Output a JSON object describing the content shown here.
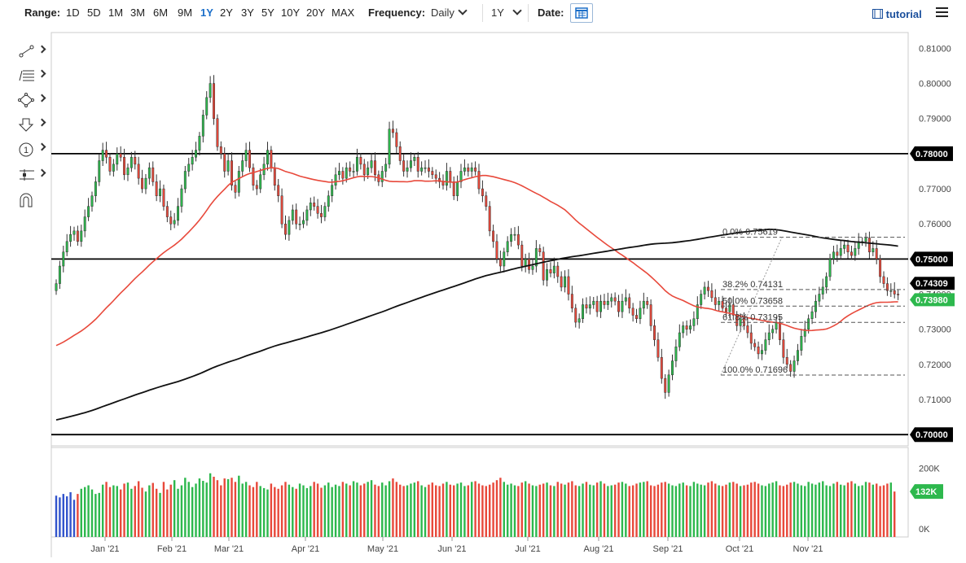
{
  "toolbar": {
    "range_label": "Range:",
    "ranges": [
      "1D",
      "5D",
      "1M",
      "3M",
      "6M",
      "9M",
      "1Y",
      "2Y",
      "3Y",
      "5Y",
      "10Y",
      "20Y",
      "MAX"
    ],
    "active_range": "1Y",
    "frequency_label": "Frequency:",
    "frequency_value": "Daily",
    "period_value": "1Y",
    "date_label": "Date:",
    "tutorial_label": "tutorial",
    "icons": {
      "calendar": "calendar-icon",
      "menu": "hamburger-menu-icon",
      "tutorial": "film-icon"
    }
  },
  "sidebar": {
    "tools": [
      "line-tool-icon",
      "fib-levels-icon",
      "shape-tool-icon",
      "arrow-down-icon",
      "circled-one-icon",
      "measure-tool-icon",
      "magnet-icon"
    ]
  },
  "colors": {
    "up": "#2db84d",
    "down": "#e8493b",
    "ma_short": "#e8493b",
    "ma_long": "#111111",
    "accent": "#1a6ec9"
  },
  "chart_data": {
    "type": "candlestick",
    "price_axis": {
      "ticks": [
        "0.81000",
        "0.80000",
        "0.79000",
        "0.78000",
        "0.77000",
        "0.76000",
        "0.75000",
        "0.74000",
        "0.73000",
        "0.72000",
        "0.71000",
        "0.70000"
      ],
      "ylim": [
        0.6968,
        0.8145
      ]
    },
    "volume_axis": {
      "ticks": [
        "200K",
        "0K"
      ],
      "ylim": [
        0,
        260000
      ]
    },
    "x_ticks": [
      "Jan '21",
      "Feb '21",
      "Mar '21",
      "Apr '21",
      "May '21",
      "Jun '21",
      "Jul '21",
      "Aug '21",
      "Sep '21",
      "Oct '21",
      "Nov '21"
    ],
    "horizontal_levels": [
      {
        "value": 0.78,
        "label": "0.78000"
      },
      {
        "value": 0.75,
        "label": "0.75000"
      },
      {
        "value": 0.7,
        "label": "0.70000"
      }
    ],
    "value_tags": [
      {
        "value": 0.74309,
        "label": "0.74309",
        "style": "black"
      },
      {
        "value": 0.7398,
        "label": "0.73980",
        "style": "green"
      }
    ],
    "volume_tag": {
      "value": 132000,
      "label": "132K"
    },
    "fib_levels": [
      {
        "label": "0.0% 0.75619",
        "value": 0.75619
      },
      {
        "label": "38.2% 0.74131",
        "value": 0.74131
      },
      {
        "label": "50.0% 0.73658",
        "value": 0.73658
      },
      {
        "label": "61.8% 0.73195",
        "value": 0.73195
      },
      {
        "label": "100.0% 0.71696",
        "value": 0.71696
      }
    ],
    "closes": [
      0.743,
      0.748,
      0.752,
      0.755,
      0.757,
      0.758,
      0.755,
      0.758,
      0.762,
      0.765,
      0.768,
      0.772,
      0.778,
      0.781,
      0.779,
      0.775,
      0.777,
      0.78,
      0.779,
      0.774,
      0.776,
      0.779,
      0.777,
      0.773,
      0.77,
      0.773,
      0.776,
      0.772,
      0.768,
      0.77,
      0.765,
      0.762,
      0.76,
      0.761,
      0.765,
      0.77,
      0.775,
      0.777,
      0.779,
      0.781,
      0.785,
      0.791,
      0.796,
      0.8,
      0.79,
      0.782,
      0.78,
      0.775,
      0.778,
      0.771,
      0.769,
      0.775,
      0.778,
      0.781,
      0.776,
      0.771,
      0.77,
      0.774,
      0.777,
      0.781,
      0.776,
      0.771,
      0.768,
      0.76,
      0.757,
      0.761,
      0.764,
      0.76,
      0.76,
      0.761,
      0.764,
      0.766,
      0.765,
      0.763,
      0.762,
      0.765,
      0.768,
      0.771,
      0.774,
      0.775,
      0.773,
      0.776,
      0.775,
      0.775,
      0.779,
      0.777,
      0.774,
      0.776,
      0.778,
      0.774,
      0.772,
      0.775,
      0.777,
      0.787,
      0.786,
      0.782,
      0.778,
      0.775,
      0.776,
      0.778,
      0.779,
      0.775,
      0.776,
      0.776,
      0.775,
      0.774,
      0.773,
      0.772,
      0.771,
      0.775,
      0.772,
      0.768,
      0.772,
      0.775,
      0.776,
      0.775,
      0.776,
      0.775,
      0.77,
      0.768,
      0.765,
      0.758,
      0.755,
      0.75,
      0.748,
      0.752,
      0.755,
      0.757,
      0.757,
      0.754,
      0.748,
      0.75,
      0.747,
      0.748,
      0.753,
      0.752,
      0.744,
      0.747,
      0.746,
      0.748,
      0.745,
      0.742,
      0.745,
      0.74,
      0.736,
      0.732,
      0.733,
      0.737,
      0.736,
      0.737,
      0.738,
      0.735,
      0.738,
      0.737,
      0.738,
      0.739,
      0.738,
      0.735,
      0.738,
      0.739,
      0.736,
      0.734,
      0.733,
      0.736,
      0.738,
      0.737,
      0.731,
      0.727,
      0.722,
      0.716,
      0.712,
      0.717,
      0.721,
      0.725,
      0.729,
      0.731,
      0.73,
      0.731,
      0.733,
      0.737,
      0.74,
      0.742,
      0.741,
      0.739,
      0.737,
      0.738,
      0.736,
      0.735,
      0.737,
      0.734,
      0.731,
      0.733,
      0.731,
      0.729,
      0.726,
      0.725,
      0.723,
      0.724,
      0.727,
      0.729,
      0.73,
      0.732,
      0.727,
      0.722,
      0.72,
      0.718,
      0.721,
      0.724,
      0.728,
      0.73,
      0.733,
      0.735,
      0.738,
      0.74,
      0.742,
      0.745,
      0.75,
      0.752,
      0.751,
      0.753,
      0.754,
      0.752,
      0.751,
      0.753,
      0.755,
      0.755,
      0.756,
      0.752,
      0.753,
      0.75,
      0.745,
      0.743,
      0.741,
      0.741,
      0.74,
      0.7398
    ],
    "volumes": [
      120,
      115,
      125,
      118,
      130,
      108,
      125,
      140,
      145,
      150,
      138,
      125,
      128,
      152,
      160,
      145,
      150,
      148,
      138,
      155,
      158,
      140,
      148,
      162,
      143,
      132,
      150,
      157,
      140,
      128,
      160,
      138,
      152,
      165,
      140,
      150,
      172,
      160,
      145,
      155,
      170,
      163,
      158,
      185,
      175,
      165,
      150,
      170,
      168,
      172,
      160,
      178,
      155,
      160,
      150,
      145,
      160,
      148,
      142,
      138,
      155,
      145,
      140,
      150,
      160,
      152,
      145,
      140,
      155,
      150,
      142,
      148,
      160,
      155,
      143,
      150,
      158,
      145,
      152,
      148,
      160,
      155,
      150,
      162,
      158,
      150,
      155,
      160,
      165,
      152,
      148,
      158,
      150,
      162,
      170,
      160,
      152,
      148,
      150,
      155,
      158,
      162,
      150,
      145,
      152,
      158,
      150,
      148,
      155,
      160,
      152,
      150,
      155,
      158,
      148,
      150,
      160,
      162,
      155,
      150,
      148,
      152,
      158,
      165,
      172,
      160,
      152,
      155,
      150,
      148,
      158,
      162,
      155,
      150,
      148,
      152,
      155,
      158,
      150,
      148,
      160,
      155,
      152,
      158,
      162,
      150,
      148,
      155,
      160,
      152,
      150,
      158,
      162,
      155,
      148,
      150,
      152,
      158,
      160,
      155,
      148,
      150,
      155,
      158,
      160,
      162,
      150,
      148,
      152,
      158,
      160,
      155,
      150,
      148,
      155,
      158,
      150,
      148,
      160,
      155,
      152,
      150,
      158,
      162,
      155,
      150,
      148,
      152,
      158,
      160,
      155,
      148,
      150,
      152,
      158,
      160,
      155,
      150,
      148,
      155,
      158,
      162,
      150,
      148,
      152,
      158,
      160,
      155,
      150,
      148,
      160,
      155,
      152,
      158,
      162,
      150,
      148,
      155,
      160,
      152,
      150,
      158,
      162,
      155,
      148,
      150,
      160,
      158,
      152,
      155,
      148,
      150,
      155,
      158,
      132
    ],
    "ma50_shape": "red moving average",
    "ma200_shape": "black moving average"
  }
}
